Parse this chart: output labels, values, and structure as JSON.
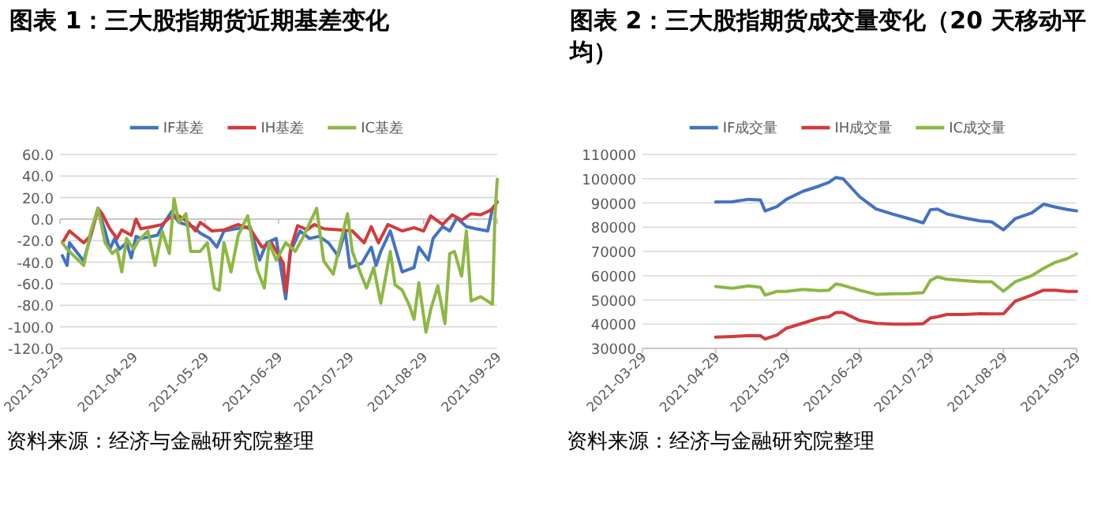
{
  "chart_data": [
    {
      "type": "line",
      "title": "图表 1：三大股指期货近期基差变化",
      "legend": "top",
      "grid": "y",
      "marker": "none",
      "line_style": "solid",
      "xlim": [
        "2021-03-29",
        "2021-09-29"
      ],
      "xticks": [
        {
          "value": "2021-03-29",
          "label": "2021-03-29"
        },
        {
          "value": "2021-04-29",
          "label": "2021-04-29"
        },
        {
          "value": "2021-05-29",
          "label": "2021-05-29"
        },
        {
          "value": "2021-06-29",
          "label": "2021-06-29"
        },
        {
          "value": "2021-07-29",
          "label": "2021-07-29"
        },
        {
          "value": "2021-08-29",
          "label": "2021-08-29"
        },
        {
          "value": "2021-09-29",
          "label": "2021-09-29"
        }
      ],
      "ylim": [
        -120,
        60
      ],
      "yticks": [
        {
          "value": 60,
          "label": "60.0"
        },
        {
          "value": 40,
          "label": "40.0"
        },
        {
          "value": 20,
          "label": "20.0"
        },
        {
          "value": 0,
          "label": "0.0"
        },
        {
          "value": -20,
          "label": "-20.0"
        },
        {
          "value": -40,
          "label": "-40.0"
        },
        {
          "value": -60,
          "label": "-60.0"
        },
        {
          "value": -80,
          "label": "-80.0"
        },
        {
          "value": -100,
          "label": "-100.0"
        },
        {
          "value": -120,
          "label": "-120.0"
        }
      ],
      "series": [
        {
          "name": "IF基差",
          "color": "#4472c4",
          "x": [
            "2021-03-30",
            "2021-04-01",
            "2021-04-02",
            "2021-04-08",
            "2021-04-11",
            "2021-04-14",
            "2021-04-17",
            "2021-04-19",
            "2021-04-21",
            "2021-04-23",
            "2021-04-26",
            "2021-04-28",
            "2021-04-30",
            "2021-05-02",
            "2021-05-09",
            "2021-05-12",
            "2021-05-15",
            "2021-05-18",
            "2021-05-24",
            "2021-05-27",
            "2021-05-31",
            "2021-06-03",
            "2021-06-06",
            "2021-06-11",
            "2021-06-17",
            "2021-06-21",
            "2021-06-24",
            "2021-06-28",
            "2021-07-02",
            "2021-07-04",
            "2021-07-08",
            "2021-07-12",
            "2021-07-16",
            "2021-07-20",
            "2021-07-24",
            "2021-07-27",
            "2021-07-29",
            "2021-08-03",
            "2021-08-07",
            "2021-08-09",
            "2021-08-11",
            "2021-08-15",
            "2021-08-20",
            "2021-08-25",
            "2021-08-27",
            "2021-08-31",
            "2021-09-02",
            "2021-09-06",
            "2021-09-09",
            "2021-09-12",
            "2021-09-16",
            "2021-09-20",
            "2021-09-25",
            "2021-09-27",
            "2021-09-29"
          ],
          "values": [
            -34,
            -43,
            -22,
            -39,
            -15,
            10,
            -11,
            -28,
            -18,
            -28,
            -22,
            -36,
            -16,
            -18,
            -15,
            -3,
            7,
            -3,
            -7,
            -13,
            -18,
            -26,
            -11,
            -9,
            -7,
            -38,
            -22,
            -18,
            -74,
            -30,
            -11,
            -18,
            -16,
            -22,
            -34,
            -11,
            -45,
            -41,
            -26,
            -43,
            -30,
            -11,
            -49,
            -45,
            -26,
            -38,
            -18,
            -7,
            -11,
            1,
            -7,
            -9,
            -11,
            10,
            16
          ]
        },
        {
          "name": "IH基差",
          "color": "#d23b3b",
          "x": [
            "2021-03-30",
            "2021-04-02",
            "2021-04-08",
            "2021-04-11",
            "2021-04-14",
            "2021-04-16",
            "2021-04-19",
            "2021-04-22",
            "2021-04-24",
            "2021-04-28",
            "2021-04-30",
            "2021-05-02",
            "2021-05-07",
            "2021-05-11",
            "2021-05-14",
            "2021-05-18",
            "2021-05-22",
            "2021-05-25",
            "2021-05-27",
            "2021-06-01",
            "2021-06-06",
            "2021-06-12",
            "2021-06-17",
            "2021-06-22",
            "2021-06-26",
            "2021-07-01",
            "2021-07-02",
            "2021-07-04",
            "2021-07-07",
            "2021-07-11",
            "2021-07-14",
            "2021-07-18",
            "2021-07-25",
            "2021-07-30",
            "2021-08-04",
            "2021-08-07",
            "2021-08-10",
            "2021-08-14",
            "2021-08-20",
            "2021-08-25",
            "2021-08-29",
            "2021-09-01",
            "2021-09-06",
            "2021-09-10",
            "2021-09-14",
            "2021-09-18",
            "2021-09-22",
            "2021-09-26",
            "2021-09-28",
            "2021-09-29"
          ],
          "values": [
            -22,
            -11,
            -22,
            -15,
            10,
            4,
            -9,
            -18,
            -10,
            -15,
            0,
            -9,
            -7,
            -5,
            1,
            3,
            -3,
            -11,
            -3,
            -11,
            -10,
            -5,
            -9,
            -26,
            -22,
            -41,
            -68,
            -28,
            -6,
            -10,
            -5,
            -9,
            -10,
            -11,
            -22,
            -7,
            -22,
            -5,
            -11,
            -8,
            -11,
            3,
            -5,
            4,
            -1,
            5,
            4,
            8,
            12,
            16
          ]
        },
        {
          "name": "IC基差",
          "color": "#8db844",
          "x": [
            "2021-03-30",
            "2021-04-01",
            "2021-04-08",
            "2021-04-11",
            "2021-04-14",
            "2021-04-17",
            "2021-04-20",
            "2021-04-22",
            "2021-04-24",
            "2021-04-26",
            "2021-04-29",
            "2021-05-01",
            "2021-05-05",
            "2021-05-08",
            "2021-05-11",
            "2021-05-14",
            "2021-05-16",
            "2021-05-18",
            "2021-05-21",
            "2021-05-23",
            "2021-05-27",
            "2021-05-30",
            "2021-06-02",
            "2021-06-04",
            "2021-06-06",
            "2021-06-09",
            "2021-06-12",
            "2021-06-16",
            "2021-06-20",
            "2021-06-23",
            "2021-06-25",
            "2021-06-28",
            "2021-07-02",
            "2021-07-06",
            "2021-07-09",
            "2021-07-15",
            "2021-07-18",
            "2021-07-22",
            "2021-07-25",
            "2021-07-28",
            "2021-07-30",
            "2021-08-03",
            "2021-08-05",
            "2021-08-08",
            "2021-08-11",
            "2021-08-15",
            "2021-08-17",
            "2021-08-20",
            "2021-08-23",
            "2021-08-25",
            "2021-08-27",
            "2021-08-30",
            "2021-09-01",
            "2021-09-04",
            "2021-09-07",
            "2021-09-09",
            "2021-09-11",
            "2021-09-14",
            "2021-09-16",
            "2021-09-18",
            "2021-09-22",
            "2021-09-27",
            "2021-09-28",
            "2021-09-29"
          ],
          "values": [
            -22,
            -28,
            -43,
            -11,
            10,
            -22,
            -32,
            -28,
            -49,
            -18,
            -28,
            -20,
            -11,
            -43,
            -11,
            -32,
            19,
            -3,
            5,
            -30,
            -30,
            -22,
            -64,
            -66,
            -22,
            -49,
            -15,
            3,
            -47,
            -64,
            -22,
            -38,
            -22,
            -30,
            -18,
            10,
            -39,
            -51,
            -22,
            5,
            -30,
            -53,
            -64,
            -45,
            -78,
            -30,
            -61,
            -66,
            -80,
            -93,
            -59,
            -105,
            -84,
            -62,
            -97,
            -32,
            -30,
            -53,
            -11,
            -76,
            -72,
            -79,
            1,
            37
          ]
        }
      ],
      "annotations": [
        "资料来源：经济与金融研究院整理"
      ]
    },
    {
      "type": "line",
      "title": "图表 2：三大股指期货成交量变化（20 天移动平均）",
      "legend": "top",
      "grid": "y",
      "marker": "none",
      "line_style": "solid",
      "xlim": [
        "2021-03-29",
        "2021-09-29"
      ],
      "xticks": [
        {
          "value": "2021-03-29",
          "label": "2021-03-29"
        },
        {
          "value": "2021-04-29",
          "label": "2021-04-29"
        },
        {
          "value": "2021-05-29",
          "label": "2021-05-29"
        },
        {
          "value": "2021-06-29",
          "label": "2021-06-29"
        },
        {
          "value": "2021-07-29",
          "label": "2021-07-29"
        },
        {
          "value": "2021-08-29",
          "label": "2021-08-29"
        },
        {
          "value": "2021-09-29",
          "label": "2021-09-29"
        }
      ],
      "ylim": [
        30000,
        110000
      ],
      "yticks": [
        30000,
        40000,
        50000,
        60000,
        70000,
        80000,
        90000,
        100000,
        110000
      ],
      "x": [
        "2021-04-29",
        "2021-05-06",
        "2021-05-13",
        "2021-05-18",
        "2021-05-20",
        "2021-05-25",
        "2021-05-29",
        "2021-06-05",
        "2021-06-12",
        "2021-06-16",
        "2021-06-19",
        "2021-06-22",
        "2021-06-29",
        "2021-07-06",
        "2021-07-13",
        "2021-07-20",
        "2021-07-26",
        "2021-07-29",
        "2021-08-01",
        "2021-08-05",
        "2021-08-12",
        "2021-08-19",
        "2021-08-24",
        "2021-08-29",
        "2021-09-03",
        "2021-09-10",
        "2021-09-15",
        "2021-09-20",
        "2021-09-25",
        "2021-09-29"
      ],
      "series": [
        {
          "name": "IF成交量",
          "color": "#4472c4",
          "values": [
            90400,
            90500,
            91500,
            91200,
            86700,
            88500,
            91500,
            94800,
            97000,
            98500,
            100500,
            100000,
            92600,
            87500,
            85400,
            83500,
            81800,
            87200,
            87500,
            85500,
            83900,
            82600,
            82200,
            78900,
            83500,
            85900,
            89500,
            88300,
            87300,
            86700
          ]
        },
        {
          "name": "IH成交量",
          "color": "#d23b3b",
          "values": [
            34600,
            34900,
            35300,
            35200,
            33900,
            35500,
            38300,
            40400,
            42500,
            43000,
            44800,
            44800,
            41500,
            40300,
            40000,
            40000,
            40200,
            42500,
            43000,
            44000,
            44000,
            44300,
            44200,
            44300,
            49500,
            52000,
            54000,
            54000,
            53500,
            53500
          ]
        },
        {
          "name": "IC成交量",
          "color": "#8db844",
          "values": [
            55500,
            54800,
            55800,
            55200,
            52000,
            53500,
            53500,
            54300,
            53800,
            54000,
            56600,
            56000,
            54000,
            52300,
            52500,
            52600,
            53000,
            58000,
            59500,
            58500,
            58000,
            57500,
            57500,
            53600,
            57500,
            60000,
            63000,
            65500,
            67000,
            69000
          ]
        }
      ],
      "annotations": [
        "资料来源：经济与金融研究院整理"
      ]
    }
  ]
}
